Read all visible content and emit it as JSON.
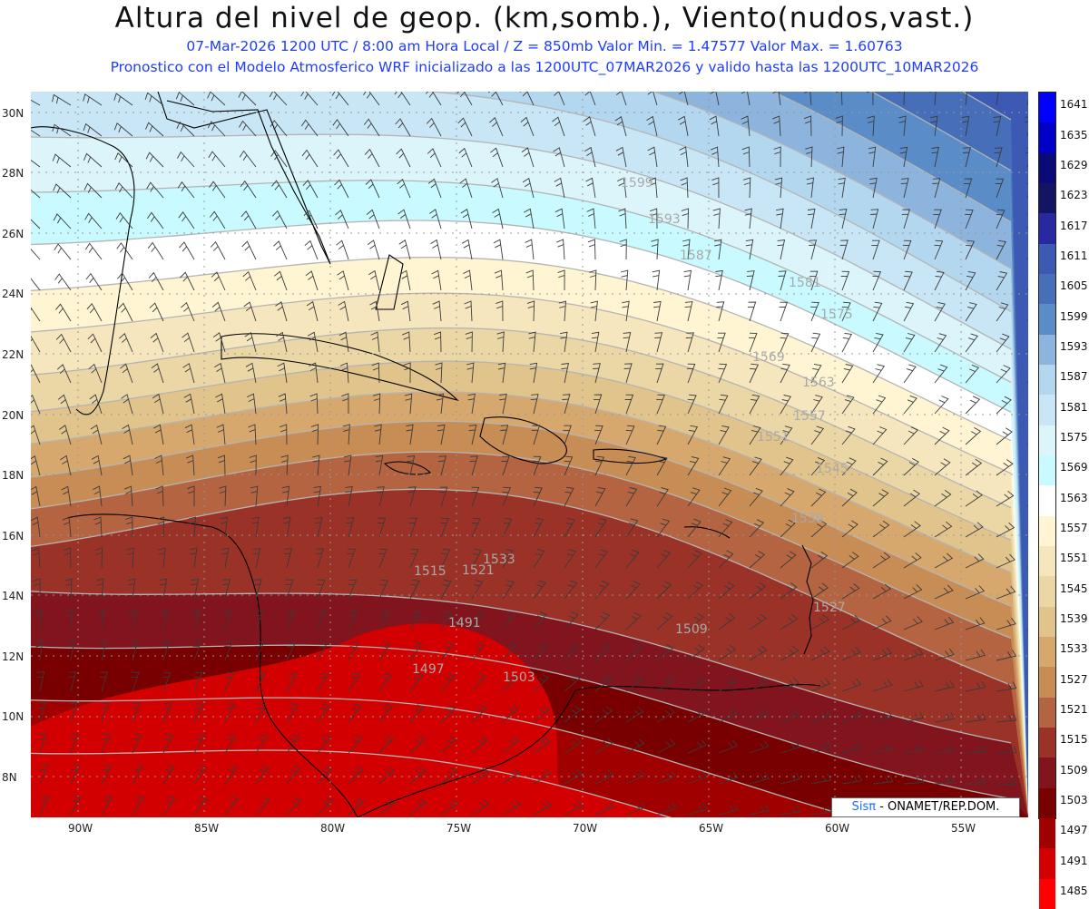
{
  "header": {
    "title": "Altura del nivel de geop. (km,somb.), Viento(nudos,vast.)",
    "line1": "07-Mar-2026  1200 UTC / 8:00 am Hora Local / Z = 850mb     Valor Min. = 1.47577  Valor Max. = 1.60763",
    "line2": "Pronostico con el Modelo Atmosferico WRF inicializado a las 1200UTC_07MAR2026 y valido hasta las  1200UTC_10MAR2026"
  },
  "axes": {
    "lat_labels": [
      "30N",
      "28N",
      "26N",
      "24N",
      "22N",
      "20N",
      "18N",
      "16N",
      "14N",
      "12N",
      "10N",
      "8N"
    ],
    "lon_labels": [
      "90W",
      "85W",
      "80W",
      "75W",
      "70W",
      "65W",
      "60W",
      "55W"
    ]
  },
  "legend": {
    "labels": [
      "1641",
      "1635",
      "1629",
      "1623",
      "1617",
      "1611",
      "1605",
      "1599",
      "1593",
      "1587",
      "1581",
      "1575",
      "1569",
      "1563",
      "1557",
      "1551",
      "1545",
      "1539",
      "1533",
      "1527",
      "1521",
      "1515",
      "1509",
      "1503",
      "1497",
      "1491",
      "1485"
    ],
    "colors": [
      "#0000ff",
      "#0000c8",
      "#0a0a78",
      "#141464",
      "#2828a0",
      "#3c5ab4",
      "#466eb9",
      "#5a8cc8",
      "#8cb4dc",
      "#b4d7f0",
      "#c8e6f5",
      "#dcf5fa",
      "#c8faff",
      "#ffffff",
      "#fff5d2",
      "#f5e6be",
      "#ebd7a5",
      "#e1c38c",
      "#d7a86e",
      "#c88c55",
      "#b46441",
      "#9b3228",
      "#82141e",
      "#780000",
      "#a00000",
      "#d20000",
      "#ff0000"
    ]
  },
  "contour_labels": [
    "1599",
    "1593",
    "1587",
    "1581",
    "1575",
    "1569",
    "1563",
    "1557",
    "1551",
    "1545",
    "1539",
    "1533",
    "1527",
    "1521",
    "1515",
    "1509",
    "1503",
    "1497",
    "1491"
  ],
  "credit": {
    "logo": "Sis",
    "logo_pi": "π",
    "text": "- ONAMET/REP.DOM."
  }
}
